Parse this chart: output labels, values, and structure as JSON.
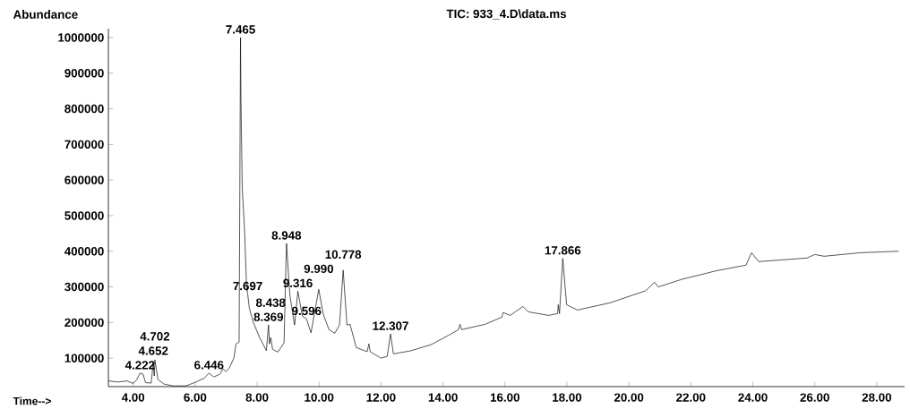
{
  "chart_data": {
    "type": "line",
    "title": "TIC: 933_4.D\\data.ms",
    "xlabel": "Time-->",
    "ylabel": "Abundance",
    "color": "#000000",
    "xlim": [
      3.2,
      28.9
    ],
    "ylim": [
      20000,
      1025000
    ],
    "xticks": [
      {
        "value": 4,
        "label": "4.00"
      },
      {
        "value": 6,
        "label": "6.00"
      },
      {
        "value": 8,
        "label": "8.00"
      },
      {
        "value": 10,
        "label": "10.00"
      },
      {
        "value": 12,
        "label": "12.00"
      },
      {
        "value": 14,
        "label": "14.00"
      },
      {
        "value": 16,
        "label": "16.00"
      },
      {
        "value": 18,
        "label": "18.00"
      },
      {
        "value": 20,
        "label": "20.00"
      },
      {
        "value": 22,
        "label": "22.00"
      },
      {
        "value": 24,
        "label": "24.00"
      },
      {
        "value": 26,
        "label": "26.00"
      },
      {
        "value": 28,
        "label": "28.00"
      }
    ],
    "yticks": [
      100000,
      200000,
      300000,
      400000,
      500000,
      600000,
      700000,
      800000,
      900000,
      1000000
    ],
    "x": [
      3.2,
      3.5,
      3.8,
      4.0,
      4.12,
      4.222,
      4.32,
      4.4,
      4.58,
      4.652,
      4.68,
      4.702,
      4.8,
      5.0,
      5.3,
      5.7,
      6.0,
      6.3,
      6.446,
      6.6,
      6.8,
      6.9,
      7.0,
      7.1,
      7.25,
      7.32,
      7.42,
      7.465,
      7.48,
      7.52,
      7.6,
      7.66,
      7.697,
      7.75,
      7.88,
      8.08,
      8.3,
      8.369,
      8.4,
      8.438,
      8.5,
      8.67,
      8.87,
      8.948,
      9.06,
      9.21,
      9.316,
      9.46,
      9.596,
      9.74,
      9.99,
      10.13,
      10.32,
      10.51,
      10.66,
      10.778,
      10.9,
      11.0,
      11.2,
      11.4,
      11.55,
      11.61,
      11.65,
      12.0,
      12.2,
      12.307,
      12.4,
      12.93,
      13.62,
      14.2,
      14.5,
      14.55,
      14.6,
      15.36,
      15.9,
      15.94,
      16.17,
      16.58,
      16.75,
      17.41,
      17.7,
      17.72,
      17.76,
      17.866,
      17.99,
      18.34,
      19.38,
      20.54,
      20.83,
      20.95,
      21.7,
      22.86,
      23.78,
      23.96,
      24.19,
      25.75,
      26.0,
      26.3,
      27.48,
      28.7
    ],
    "values": [
      36000,
      33000,
      36000,
      29000,
      40000,
      58000,
      55000,
      31000,
      30000,
      90000,
      50000,
      95000,
      40000,
      27000,
      22000,
      22000,
      32000,
      44000,
      58000,
      47000,
      55000,
      70000,
      62000,
      72000,
      100000,
      140000,
      145000,
      1000000,
      820000,
      580000,
      450000,
      300000,
      280000,
      240000,
      200000,
      158000,
      121000,
      193000,
      140000,
      158000,
      125000,
      117000,
      143000,
      422000,
      275000,
      193000,
      288000,
      218000,
      210000,
      171000,
      293000,
      225000,
      180000,
      170000,
      193000,
      347000,
      193000,
      195000,
      130000,
      123000,
      118000,
      140000,
      118000,
      100000,
      105000,
      168000,
      112000,
      120000,
      138000,
      165000,
      180000,
      195000,
      180000,
      195000,
      215000,
      228000,
      220000,
      245000,
      230000,
      220000,
      225000,
      250000,
      225000,
      380000,
      250000,
      235000,
      255000,
      289000,
      313000,
      300000,
      321000,
      346000,
      361000,
      396000,
      371000,
      381000,
      391000,
      386000,
      396000,
      400000
    ],
    "annotations": [
      {
        "text": "4.222",
        "x": 4.222,
        "y": 58000
      },
      {
        "text": "4.652",
        "x": 4.652,
        "y": 90000
      },
      {
        "text": "4.702",
        "x": 4.702,
        "y": 95000
      },
      {
        "text": "6.446",
        "x": 6.446,
        "y": 58000
      },
      {
        "text": "7.465",
        "x": 7.465,
        "y": 1000000
      },
      {
        "text": "7.697",
        "x": 7.697,
        "y": 280000
      },
      {
        "text": "8.369",
        "x": 8.369,
        "y": 193000
      },
      {
        "text": "8.438",
        "x": 8.438,
        "y": 158000
      },
      {
        "text": "8.948",
        "x": 8.948,
        "y": 422000
      },
      {
        "text": "9.316",
        "x": 9.316,
        "y": 288000
      },
      {
        "text": "9.596",
        "x": 9.596,
        "y": 210000
      },
      {
        "text": "9.990",
        "x": 9.99,
        "y": 293000
      },
      {
        "text": "10.778",
        "x": 10.778,
        "y": 347000
      },
      {
        "text": "12.307",
        "x": 12.307,
        "y": 168000
      },
      {
        "text": "17.866",
        "x": 17.866,
        "y": 380000
      }
    ]
  }
}
